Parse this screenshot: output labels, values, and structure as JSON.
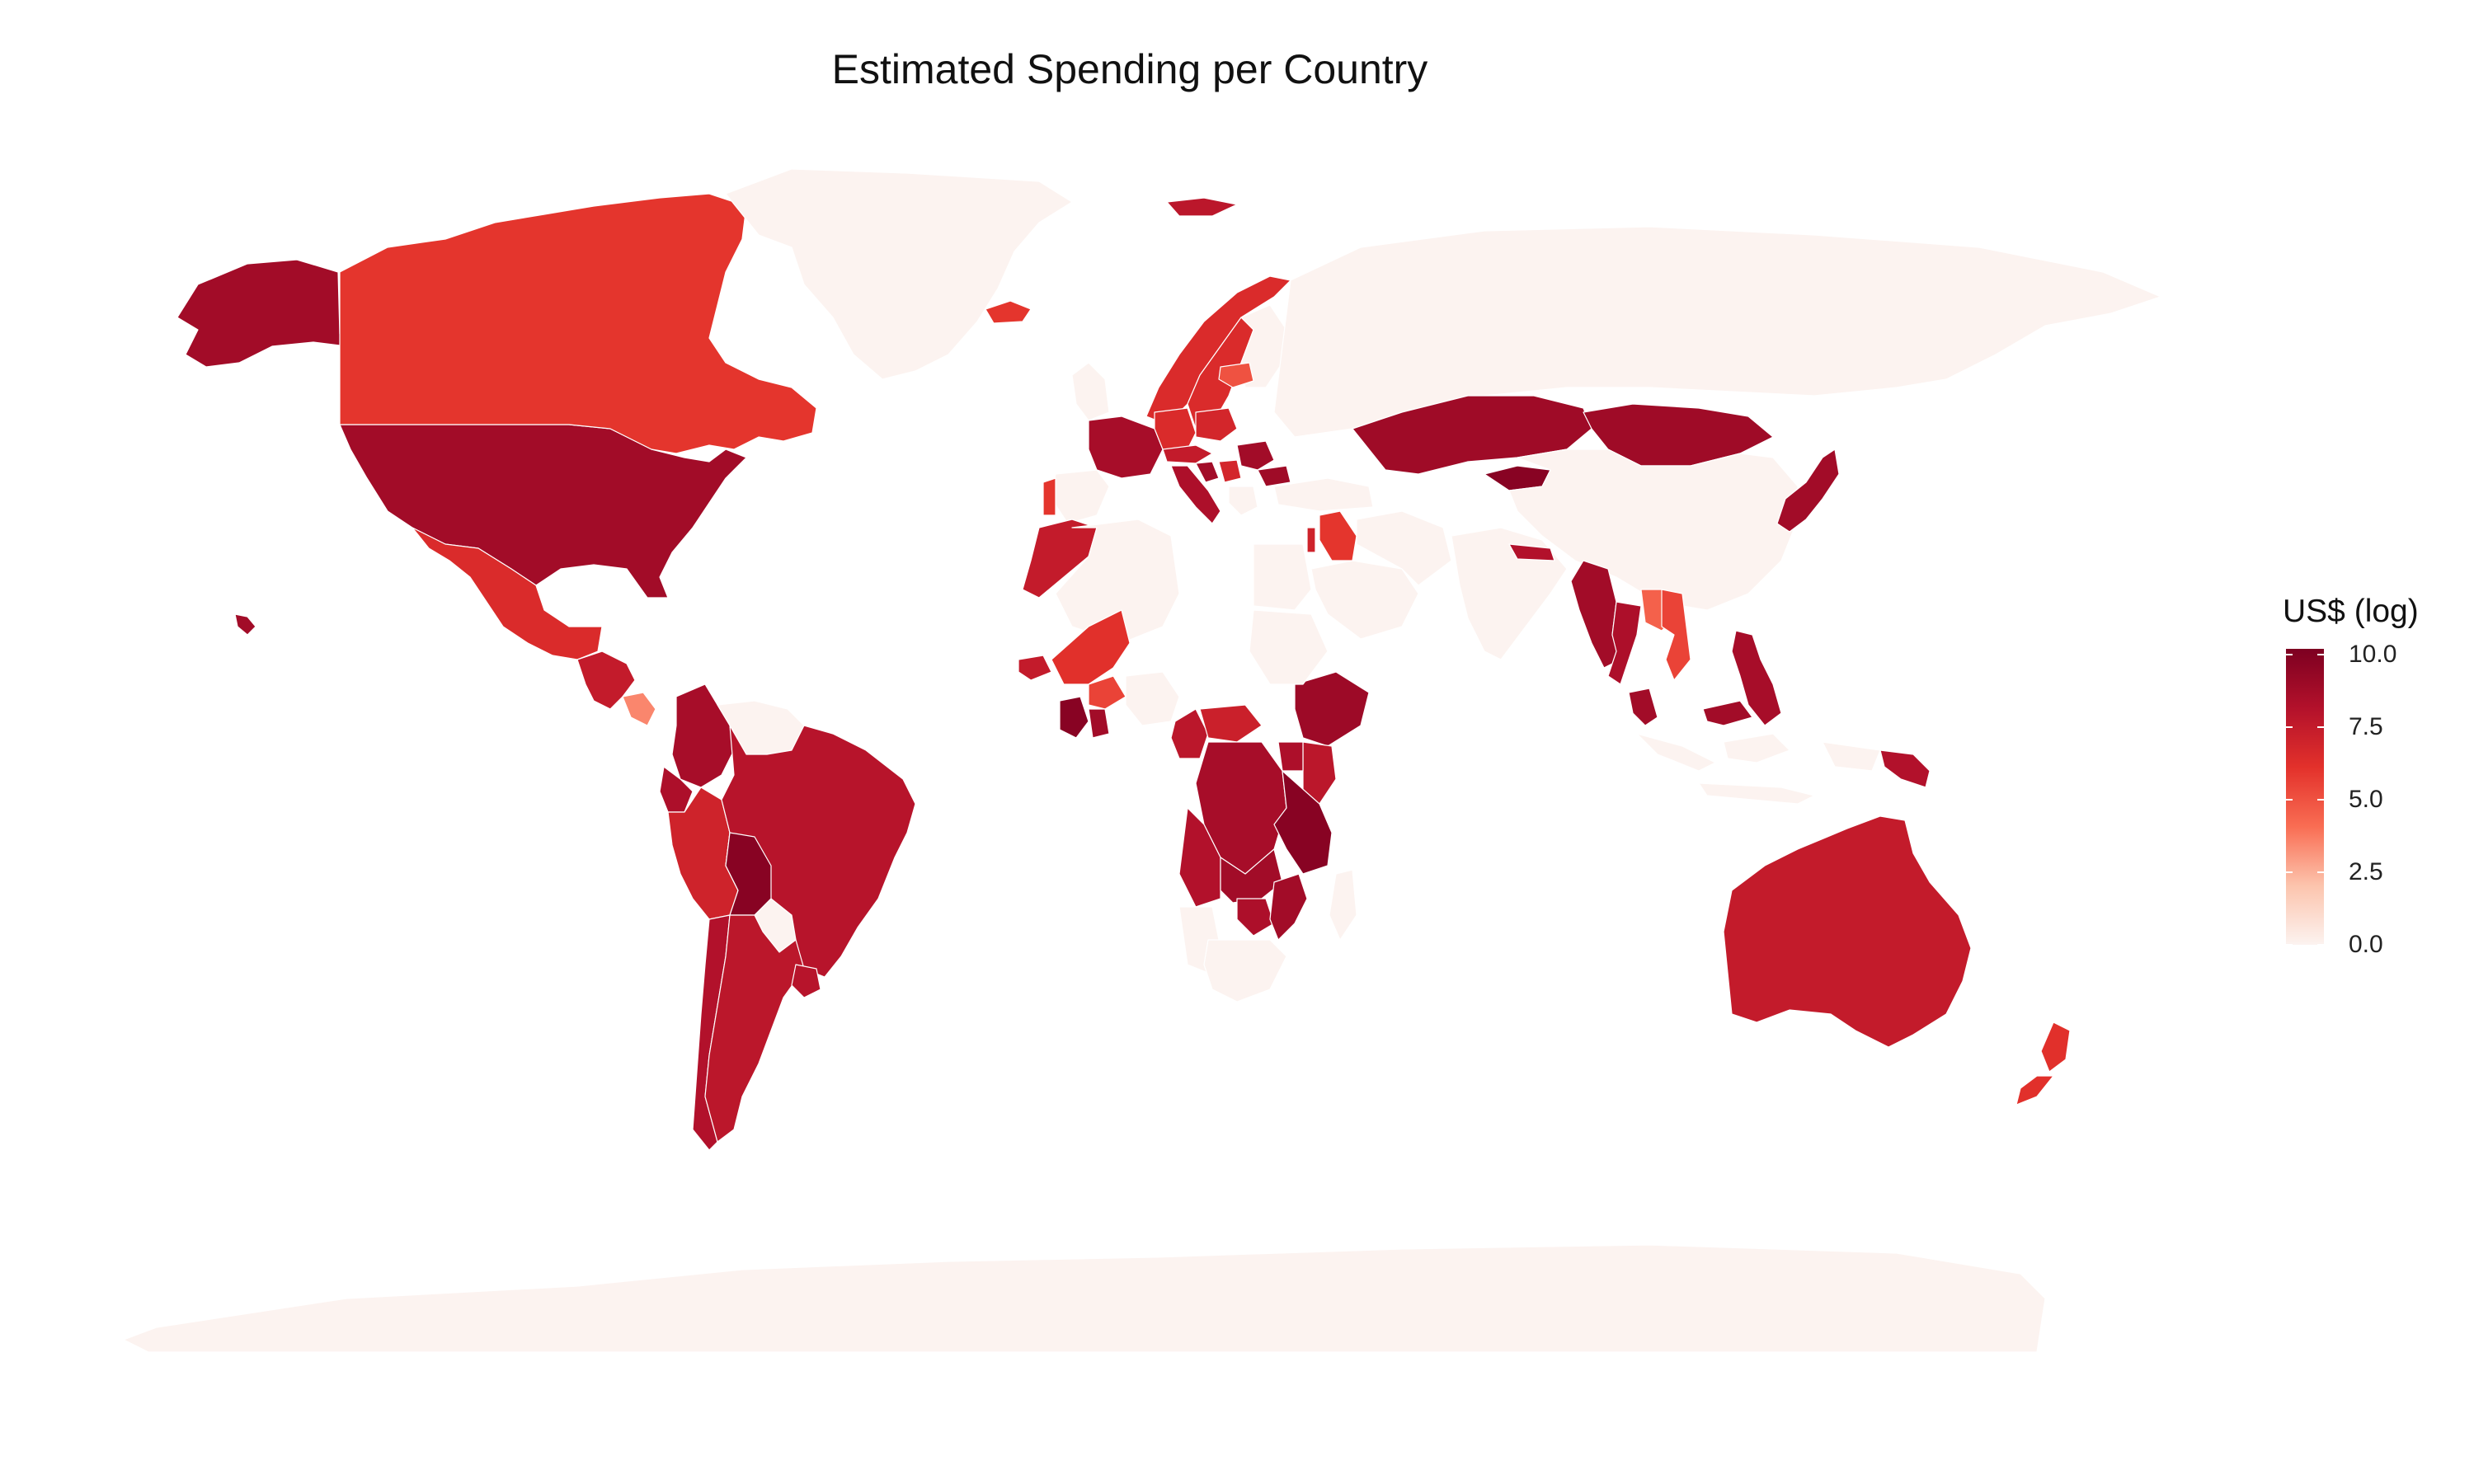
{
  "title": "Estimated Spending per Country",
  "legend": {
    "title": "US$ (log)",
    "ticks": [
      {
        "label": "10.0",
        "value": 10.0
      },
      {
        "label": "7.5",
        "value": 7.5
      },
      {
        "label": "5.0",
        "value": 5.0
      },
      {
        "label": "2.5",
        "value": 2.5
      },
      {
        "label": "0.0",
        "value": 0.0
      }
    ],
    "range": [
      0,
      10.2
    ],
    "colors": [
      "#fcf3f0",
      "#fcc4ad",
      "#f96d53",
      "#e3312b",
      "#b3112b",
      "#7d0021"
    ]
  },
  "chart_data": {
    "type": "choropleth",
    "title": "Estimated Spending per Country",
    "legend_title": "US$ (log)",
    "scale_range": [
      0,
      10.2
    ],
    "no_data_value": 0,
    "regions": [
      {
        "name": "United States",
        "value": 8.8
      },
      {
        "name": "Alaska",
        "value": 8.8
      },
      {
        "name": "Canada",
        "value": 6.0
      },
      {
        "name": "Mexico",
        "value": 6.5
      },
      {
        "name": "Central America",
        "value": 7.5
      },
      {
        "name": "Costa Rica",
        "value": 3.5
      },
      {
        "name": "Colombia",
        "value": 8.6
      },
      {
        "name": "Venezuela",
        "value": 0
      },
      {
        "name": "Ecuador",
        "value": 8.4
      },
      {
        "name": "Peru",
        "value": 7.0
      },
      {
        "name": "Brazil",
        "value": 8.0
      },
      {
        "name": "Bolivia",
        "value": 9.8
      },
      {
        "name": "Paraguay",
        "value": 0
      },
      {
        "name": "Chile",
        "value": 8.2
      },
      {
        "name": "Argentina",
        "value": 7.8
      },
      {
        "name": "Uruguay",
        "value": 8.0
      },
      {
        "name": "Greenland",
        "value": 0
      },
      {
        "name": "Iceland",
        "value": 6.0
      },
      {
        "name": "Svalbard",
        "value": 7.8
      },
      {
        "name": "Norway",
        "value": 6.5
      },
      {
        "name": "Sweden",
        "value": 6.5
      },
      {
        "name": "Finland",
        "value": 0
      },
      {
        "name": "Latvia",
        "value": 5.0
      },
      {
        "name": "United Kingdom",
        "value": 0
      },
      {
        "name": "France",
        "value": 8.6
      },
      {
        "name": "Germany",
        "value": 6.5
      },
      {
        "name": "Spain",
        "value": 0
      },
      {
        "name": "Portugal",
        "value": 6.0
      },
      {
        "name": "Italy",
        "value": 8.4
      },
      {
        "name": "Austria",
        "value": 7.5
      },
      {
        "name": "Poland",
        "value": 6.8
      },
      {
        "name": "Croatia",
        "value": 8.8
      },
      {
        "name": "Serbia",
        "value": 6.8
      },
      {
        "name": "Romania",
        "value": 8.8
      },
      {
        "name": "Bulgaria",
        "value": 8.9
      },
      {
        "name": "Greece",
        "value": 0
      },
      {
        "name": "Turkey",
        "value": 0
      },
      {
        "name": "Iraq",
        "value": 6.0
      },
      {
        "name": "Israel",
        "value": 7.0
      },
      {
        "name": "Saudi Arabia",
        "value": 0
      },
      {
        "name": "Iran",
        "value": 0
      },
      {
        "name": "Russia",
        "value": 0
      },
      {
        "name": "Kazakhstan",
        "value": 8.9
      },
      {
        "name": "Kyrgyzstan",
        "value": 9.8
      },
      {
        "name": "Mongolia",
        "value": 8.9
      },
      {
        "name": "China",
        "value": 0
      },
      {
        "name": "India",
        "value": 0
      },
      {
        "name": "Nepal",
        "value": 8.2
      },
      {
        "name": "Myanmar",
        "value": 8.8
      },
      {
        "name": "Thailand",
        "value": 8.4
      },
      {
        "name": "Laos",
        "value": 4.5
      },
      {
        "name": "Vietnam",
        "value": 5.5
      },
      {
        "name": "Malaysia",
        "value": 8.8
      },
      {
        "name": "Philippines",
        "value": 8.6
      },
      {
        "name": "Indonesia",
        "value": 0
      },
      {
        "name": "Japan",
        "value": 8.8
      },
      {
        "name": "Morocco",
        "value": 7.5
      },
      {
        "name": "Algeria",
        "value": 0
      },
      {
        "name": "Senegal",
        "value": 7.5
      },
      {
        "name": "Mali",
        "value": 6.2
      },
      {
        "name": "Burkina Faso",
        "value": 5.5
      },
      {
        "name": "Cote d'Ivoire",
        "value": 9.8
      },
      {
        "name": "Ghana",
        "value": 8.8
      },
      {
        "name": "Nigeria",
        "value": 0
      },
      {
        "name": "Cameroon",
        "value": 7.8
      },
      {
        "name": "Central African Rep.",
        "value": 7.2
      },
      {
        "name": "Ethiopia",
        "value": 9.0
      },
      {
        "name": "Kenya",
        "value": 7.8
      },
      {
        "name": "Uganda",
        "value": 8.4
      },
      {
        "name": "Dem. Rep. Congo",
        "value": 8.6
      },
      {
        "name": "Angola",
        "value": 8.2
      },
      {
        "name": "Tanzania",
        "value": 9.8
      },
      {
        "name": "Zambia",
        "value": 8.8
      },
      {
        "name": "Zimbabwe",
        "value": 8.4
      },
      {
        "name": "Mozambique",
        "value": 8.8
      },
      {
        "name": "Namibia",
        "value": 0
      },
      {
        "name": "South Africa",
        "value": 0
      },
      {
        "name": "Madagascar",
        "value": 0
      },
      {
        "name": "Egypt",
        "value": 0
      },
      {
        "name": "Sudan",
        "value": 0
      },
      {
        "name": "Australia",
        "value": 7.5
      },
      {
        "name": "Papua New Guinea",
        "value": 8.2
      },
      {
        "name": "New Zealand",
        "value": 6.2
      },
      {
        "name": "Hawaii",
        "value": 8.8
      },
      {
        "name": "Antarctica",
        "value": 0
      }
    ]
  }
}
